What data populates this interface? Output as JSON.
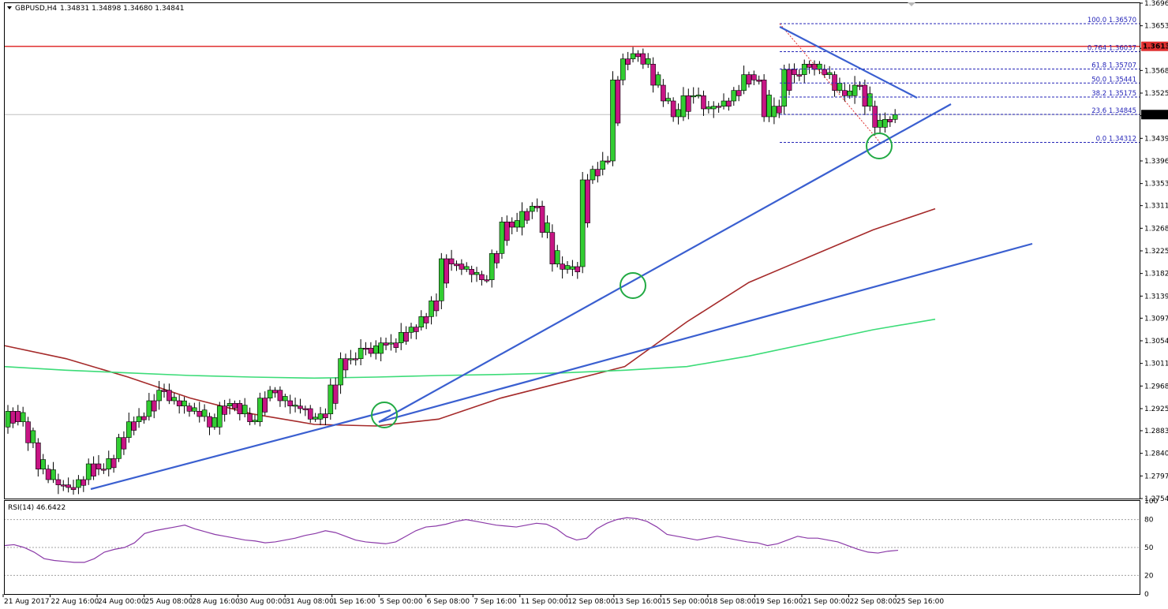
{
  "header": {
    "symbol": "GBPUSD,H4",
    "ohlc": "1.34831 1.34898 1.34680 1.34841"
  },
  "chart_data": [
    {
      "type": "candlestick",
      "title": "GBPUSD,H4",
      "ylim": [
        1.2754,
        1.3696
      ],
      "y_ticks": [
        "1.36960",
        "1.36530",
        "1.36100",
        "1.35680",
        "1.35250",
        "1.34820",
        "1.34390",
        "1.33960",
        "1.33530",
        "1.33110",
        "1.32680",
        "1.32250",
        "1.31820",
        "1.31390",
        "1.30970",
        "1.30540",
        "1.30110",
        "1.29680",
        "1.29250",
        "1.28830",
        "1.28400",
        "1.27970",
        "1.27540"
      ],
      "x_ticks": [
        "21 Aug 2017",
        "22 Aug 16:00",
        "24 Aug 00:00",
        "25 Aug 08:00",
        "28 Aug 16:00",
        "30 Aug 00:00",
        "31 Aug 08:00",
        "1 Sep 16:00",
        "5 Sep 00:00",
        "6 Sep 08:00",
        "7 Sep 16:00",
        "11 Sep 00:00",
        "12 Sep 08:00",
        "13 Sep 16:00",
        "15 Sep 00:00",
        "18 Sep 08:00",
        "19 Sep 16:00",
        "21 Sep 00:00",
        "22 Sep 08:00",
        "25 Sep 16:00"
      ],
      "price_path": [
        1.289,
        1.292,
        1.29,
        1.286,
        1.281,
        1.279,
        1.278,
        1.2775,
        1.279,
        1.282,
        1.281,
        1.283,
        1.287,
        1.29,
        1.291,
        1.294,
        1.296,
        1.294,
        1.293,
        1.292,
        1.291,
        1.289,
        1.293,
        1.2935,
        1.2915,
        1.29,
        1.2945,
        1.296,
        1.294,
        1.293,
        1.2925,
        1.2905,
        1.2915,
        1.297,
        1.302,
        1.302,
        1.304,
        1.303,
        1.305,
        1.305,
        1.307,
        1.308,
        1.31,
        1.313,
        1.321,
        1.32,
        1.319,
        1.318,
        1.317,
        1.322,
        1.328,
        1.327,
        1.33,
        1.331,
        1.326,
        1.32,
        1.319,
        1.3195,
        1.336,
        1.338,
        1.3396,
        1.355,
        1.359,
        1.36,
        1.358,
        1.354,
        1.351,
        1.348,
        1.352,
        1.352,
        1.3495,
        1.35,
        1.351,
        1.353,
        1.356,
        1.355,
        1.348,
        1.35,
        1.357,
        1.356,
        1.358,
        1.357,
        1.356,
        1.353,
        1.352,
        1.354,
        1.35,
        1.346,
        1.3475,
        1.3484
      ],
      "current_price": "1.34841",
      "resistance_price": "1.36139",
      "fibonacci": [
        {
          "label": "100.0",
          "price": "1.36570"
        },
        {
          "label": "0.764",
          "price": "1.36037"
        },
        {
          "label": "61.8",
          "price": "1.35707"
        },
        {
          "label": "50.0",
          "price": "1.35441"
        },
        {
          "label": "38.2",
          "price": "1.35175"
        },
        {
          "label": "23.6",
          "price": "1.34845"
        },
        {
          "label": "0.0",
          "price": "1.34312"
        }
      ],
      "moving_averages": [
        {
          "color": "#a52a2a",
          "values": [
            1.3045,
            1.302,
            1.2985,
            1.2945,
            1.2915,
            1.2895,
            1.2892,
            1.2905,
            1.2945,
            1.2975,
            1.3005,
            1.309,
            1.3165,
            1.3215,
            1.3265,
            1.3305
          ]
        },
        {
          "color": "#3cdc78",
          "values": [
            1.3005,
            1.2998,
            1.2993,
            1.2988,
            1.2985,
            1.2983,
            1.2985,
            1.2988,
            1.299,
            1.2993,
            1.2998,
            1.3005,
            1.3025,
            1.305,
            1.3075,
            1.3095
          ]
        }
      ]
    },
    {
      "type": "line",
      "title": "RSI(14) 46.6422",
      "ylim": [
        0,
        100
      ],
      "y_ticks": [
        "100",
        "80",
        "50",
        "20",
        "0"
      ],
      "levels": [
        80,
        50,
        20
      ],
      "values": [
        52,
        53,
        50,
        45,
        38,
        36,
        35,
        34,
        34,
        38,
        45,
        48,
        50,
        55,
        65,
        68,
        70,
        72,
        74,
        70,
        67,
        64,
        62,
        60,
        58,
        57,
        55,
        56,
        58,
        60,
        63,
        65,
        68,
        66,
        62,
        58,
        56,
        55,
        54,
        56,
        62,
        68,
        72,
        73,
        75,
        78,
        80,
        78,
        76,
        74,
        73,
        72,
        74,
        76,
        75,
        70,
        62,
        58,
        60,
        70,
        76,
        80,
        82,
        81,
        78,
        72,
        64,
        62,
        60,
        58,
        60,
        62,
        60,
        58,
        56,
        55,
        52,
        54,
        58,
        62,
        60,
        60,
        58,
        56,
        52,
        48,
        45,
        44,
        46,
        47
      ]
    }
  ]
}
